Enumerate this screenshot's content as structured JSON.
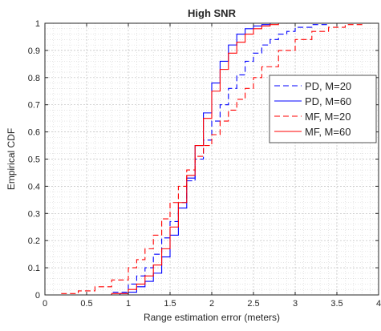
{
  "chart_data": {
    "type": "line",
    "title": "High SNR",
    "xlabel": "Range estimation error (meters)",
    "ylabel": "Empirical CDF",
    "xlim": [
      0,
      4
    ],
    "ylim": [
      0,
      1
    ],
    "xticks": [
      0,
      0.5,
      1,
      1.5,
      2,
      2.5,
      3,
      3.5,
      4
    ],
    "xtick_labels": [
      "0",
      "0.5",
      "1",
      "1.5",
      "2",
      "2.5",
      "3",
      "3.5",
      "4"
    ],
    "yticks": [
      0,
      0.1,
      0.2,
      0.3,
      0.4,
      0.5,
      0.6,
      0.7,
      0.8,
      0.9,
      1
    ],
    "ytick_labels": [
      "0",
      "0.1",
      "0.2",
      "0.3",
      "0.4",
      "0.5",
      "0.6",
      "0.7",
      "0.8",
      "0.9",
      "1"
    ],
    "grid": true,
    "minor_grid": true,
    "legend_position": "right",
    "series": [
      {
        "name": "PD, M=20",
        "color": "#0000ff",
        "style": "dashed",
        "x": [
          0,
          0.5,
          0.8,
          1.0,
          1.1,
          1.2,
          1.3,
          1.4,
          1.5,
          1.6,
          1.7,
          1.8,
          1.9,
          2.0,
          2.1,
          2.2,
          2.3,
          2.4,
          2.5,
          2.6,
          2.7,
          2.8,
          2.9,
          3.0,
          3.2,
          3.4,
          3.6,
          3.8,
          4.0
        ],
        "y": [
          0,
          0,
          0.01,
          0.04,
          0.07,
          0.1,
          0.15,
          0.21,
          0.27,
          0.34,
          0.42,
          0.5,
          0.57,
          0.64,
          0.7,
          0.76,
          0.81,
          0.86,
          0.89,
          0.92,
          0.94,
          0.96,
          0.97,
          0.985,
          0.995,
          1,
          1,
          1,
          1
        ]
      },
      {
        "name": "PD, M=60",
        "color": "#0000ff",
        "style": "solid",
        "x": [
          0,
          0.5,
          0.9,
          1.0,
          1.1,
          1.2,
          1.3,
          1.4,
          1.5,
          1.6,
          1.7,
          1.8,
          1.9,
          2.0,
          2.1,
          2.2,
          2.3,
          2.4,
          2.5,
          2.6,
          2.7,
          2.8,
          3.0,
          3.2,
          3.5,
          4.0
        ],
        "y": [
          0,
          0,
          0.005,
          0.01,
          0.03,
          0.05,
          0.08,
          0.14,
          0.22,
          0.32,
          0.43,
          0.55,
          0.67,
          0.78,
          0.86,
          0.92,
          0.96,
          0.98,
          0.99,
          0.995,
          1,
          1,
          1,
          1,
          1,
          1
        ]
      },
      {
        "name": "MF, M=20",
        "color": "#ff0000",
        "style": "dashed",
        "x": [
          0,
          0.2,
          0.4,
          0.6,
          0.8,
          1.0,
          1.1,
          1.2,
          1.3,
          1.4,
          1.5,
          1.6,
          1.7,
          1.8,
          1.9,
          2.0,
          2.1,
          2.2,
          2.3,
          2.4,
          2.5,
          2.6,
          2.8,
          3.0,
          3.2,
          3.4,
          3.6,
          3.8,
          4.0
        ],
        "y": [
          0,
          0.005,
          0.015,
          0.03,
          0.055,
          0.1,
          0.13,
          0.17,
          0.22,
          0.28,
          0.34,
          0.4,
          0.46,
          0.51,
          0.55,
          0.59,
          0.64,
          0.68,
          0.72,
          0.76,
          0.8,
          0.84,
          0.9,
          0.94,
          0.97,
          0.985,
          0.995,
          1,
          1
        ]
      },
      {
        "name": "MF, M=60",
        "color": "#ff0000",
        "style": "solid",
        "x": [
          0,
          0.5,
          0.8,
          1.0,
          1.1,
          1.2,
          1.3,
          1.4,
          1.5,
          1.6,
          1.7,
          1.8,
          1.9,
          2.0,
          2.1,
          2.2,
          2.3,
          2.4,
          2.5,
          2.6,
          2.7,
          2.8,
          3.0,
          3.2,
          3.5,
          4.0
        ],
        "y": [
          0,
          0,
          0.005,
          0.02,
          0.04,
          0.07,
          0.11,
          0.17,
          0.25,
          0.34,
          0.44,
          0.55,
          0.65,
          0.75,
          0.83,
          0.89,
          0.93,
          0.96,
          0.98,
          0.99,
          0.995,
          1,
          1,
          1,
          1,
          1
        ]
      }
    ]
  }
}
